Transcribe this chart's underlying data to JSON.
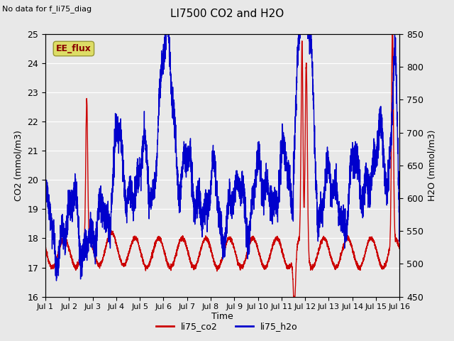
{
  "title": "LI7500 CO2 and H2O",
  "subtitle": "No data for f_li75_diag",
  "xlabel": "Time",
  "ylabel_left": "CO2 (mmol/m3)",
  "ylabel_right": "H2O (mmol/m3)",
  "ylim_left": [
    16.0,
    25.0
  ],
  "ylim_right": [
    450,
    850
  ],
  "xtick_labels": [
    "Jul 1",
    "Jul 2",
    "Jul 3",
    "Jul 4",
    "Jul 5",
    "Jul 6",
    "Jul 7",
    "Jul 8",
    "Jul 9",
    "Jul 10",
    "Jul 11",
    "Jul 12",
    "Jul 13",
    "Jul 14",
    "Jul 15",
    "Jul 16"
  ],
  "co2_color": "#cc0000",
  "h2o_color": "#0000cc",
  "bg_color": "#e8e8e8",
  "grid_color": "#ffffff",
  "ee_flux_box_facecolor": "#dddd66",
  "ee_flux_box_edgecolor": "#999933",
  "ee_flux_text_color": "#880000",
  "legend_co2_label": "li75_co2",
  "legend_h2o_label": "li75_h2o",
  "linewidth": 1.0,
  "n_per_day": 288,
  "n_days": 15
}
